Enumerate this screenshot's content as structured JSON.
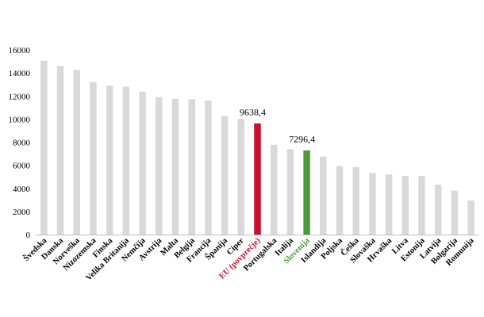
{
  "chart_data": {
    "type": "bar",
    "title": "",
    "xlabel": "",
    "ylabel": "",
    "ylim": [
      0,
      16000
    ],
    "yticks": [
      "0",
      "2000",
      "4000",
      "6000",
      "8000",
      "10000",
      "12000",
      "14000",
      "16000"
    ],
    "grid": false,
    "legend": "none",
    "colors": {
      "default": "#d9d9d9",
      "eu": "#c8102e",
      "slovenia": "#4c9a3a"
    },
    "categories": [
      "Švedska",
      "Danska",
      "Norveška",
      "Nizozemska",
      "Finska",
      "Velika Britanija",
      "Nemčija",
      "Avstrija",
      "Malta",
      "Belgija",
      "Francija",
      "Španija",
      "Ciper",
      "EU (povprečje)",
      "Portugalska",
      "Italija",
      "Slovenija",
      "Islandija",
      "Poljska",
      "Češka",
      "Slovaška",
      "Hrvaška",
      "Litva",
      "Estonija",
      "Latvija",
      "Bolgarija",
      "Romunija"
    ],
    "values": [
      15050,
      14620,
      14280,
      13220,
      12920,
      12820,
      12380,
      11920,
      11760,
      11720,
      11620,
      10270,
      10020,
      9638.4,
      7780,
      7390,
      7296.4,
      6760,
      5940,
      5860,
      5330,
      5220,
      5080,
      5080,
      4330,
      3800,
      2960
    ],
    "highlight": {
      "EU (povprečje)": "eu",
      "Slovenija": "slovenia"
    },
    "data_labels": {
      "EU (povprečje)": "9638,4",
      "Slovenija": "7296,4"
    }
  }
}
